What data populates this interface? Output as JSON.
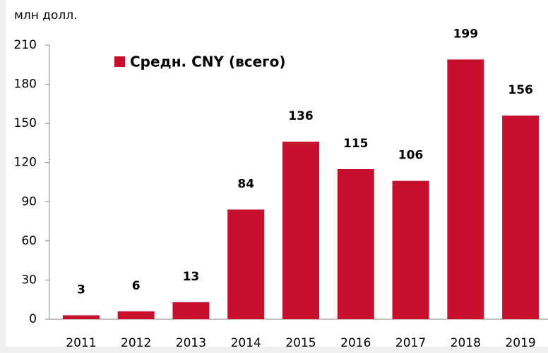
{
  "chart_data": {
    "type": "bar",
    "y_label": "млн долл.",
    "categories": [
      "2011",
      "2012",
      "2013",
      "2014",
      "2015",
      "2016",
      "2017",
      "2018",
      "2019"
    ],
    "series": [
      {
        "name": "Средн. CNY (всего)",
        "color": "#c8102e",
        "values": [
          3,
          6,
          13,
          84,
          136,
          115,
          106,
          199,
          156
        ]
      }
    ],
    "ylim": [
      0,
      210
    ],
    "yticks": [
      0,
      30,
      60,
      90,
      120,
      150,
      180,
      210
    ],
    "legend": "top-left"
  }
}
